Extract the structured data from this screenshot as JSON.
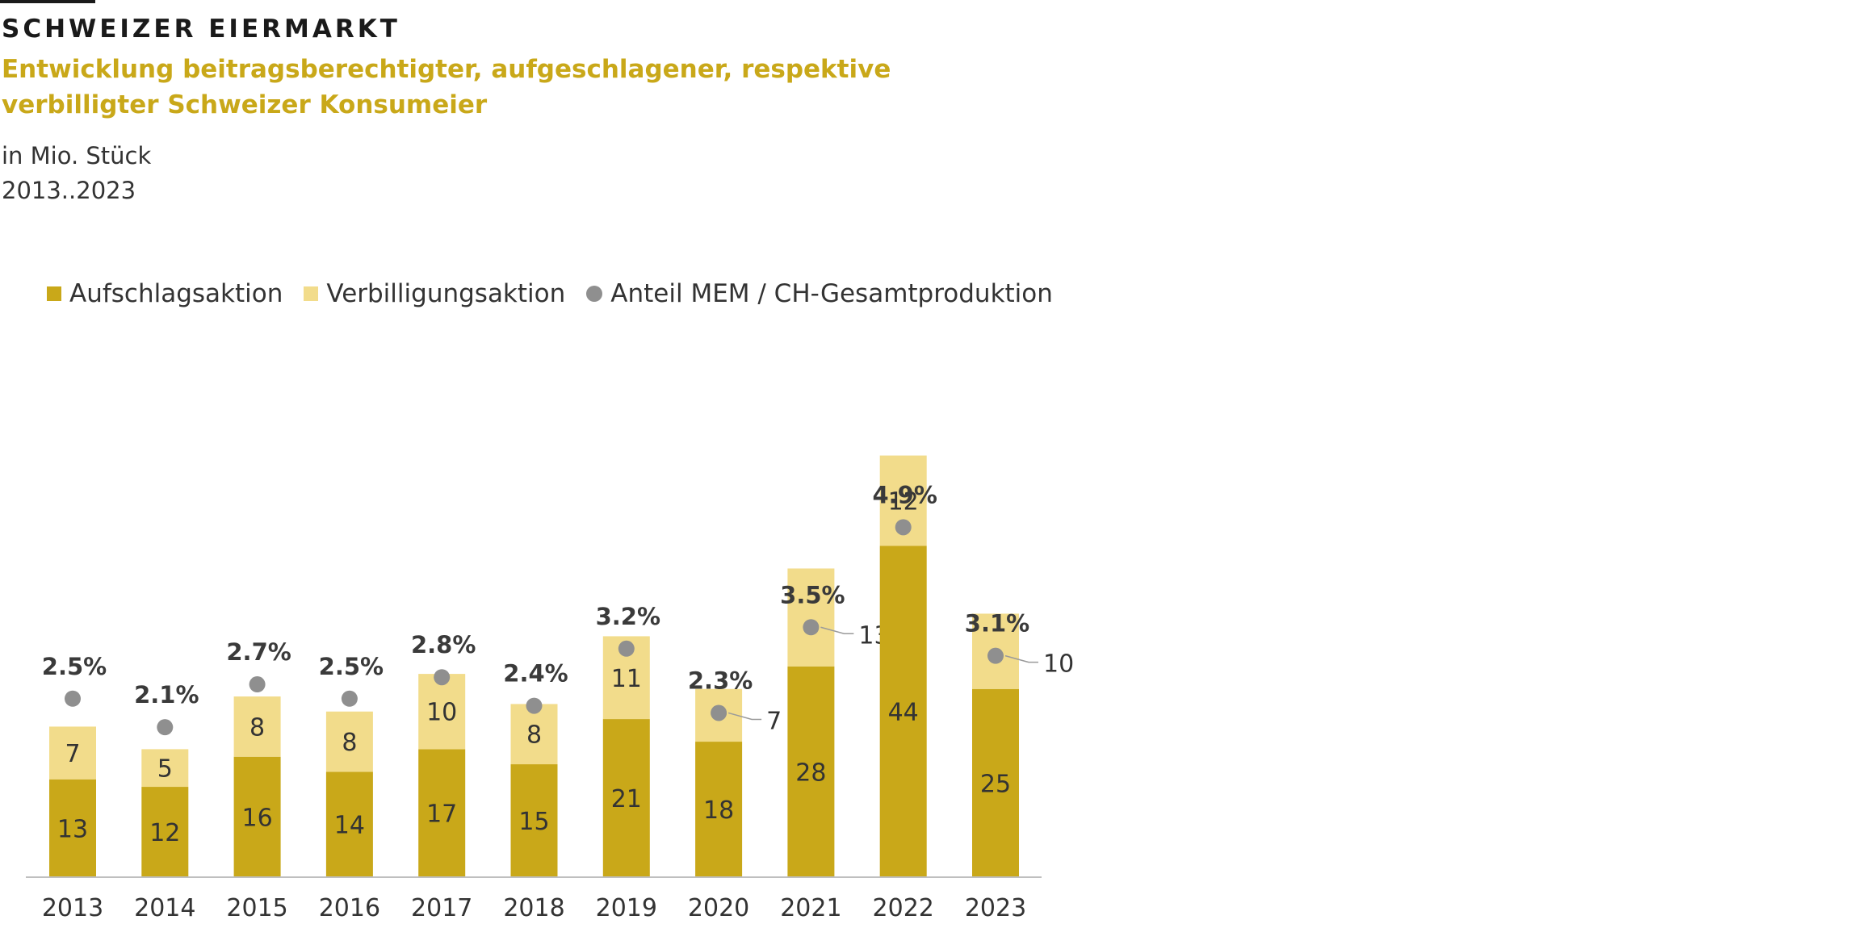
{
  "header": {
    "kicker": "SCHWEIZER EIERMARKT",
    "subtitle": "Entwicklung beitragsberechtigter, aufgeschlagener, respektive verbilligter Schweizer Konsumeier",
    "unit": "in Mio. Stück",
    "range": "2013..2023"
  },
  "colors": {
    "aufschlag": "#c9a819",
    "verbilligung": "#f2dc8b",
    "anteil": "#8f8f8f",
    "axis": "#bfbfbf",
    "subtitle": "#c9a819"
  },
  "chart_data": {
    "type": "bar",
    "stacked": true,
    "title": "Entwicklung beitragsberechtigter, aufgeschlagener, respektive verbilligter Schweizer Konsumeier",
    "ylabel": "in Mio. Stück",
    "ylim": [
      0,
      62
    ],
    "grid": false,
    "legend_position": "top-left",
    "categories": [
      "2013",
      "2014",
      "2015",
      "2016",
      "2017",
      "2018",
      "2019",
      "2020",
      "2021",
      "2022",
      "2023"
    ],
    "series": [
      {
        "name": "Aufschlagsaktion",
        "values": [
          13,
          12,
          16,
          14,
          17,
          15,
          21,
          18,
          28,
          44,
          25
        ]
      },
      {
        "name": "Verbilligungsaktion",
        "values": [
          7,
          5,
          8,
          8,
          10,
          8,
          11,
          7,
          13,
          12,
          10
        ]
      }
    ],
    "secondary_series": {
      "name": "Anteil MEM / CH-Gesamtproduktion",
      "type": "scatter",
      "values": [
        2.5,
        2.1,
        2.7,
        2.5,
        2.8,
        2.4,
        3.2,
        2.3,
        3.5,
        4.9,
        3.1
      ],
      "labels": [
        "2.5%",
        "2.1%",
        "2.7%",
        "2.5%",
        "2.8%",
        "2.4%",
        "3.2%",
        "2.3%",
        "3.5%",
        "4.9%",
        "3.1%"
      ],
      "ylim": [
        0,
        8
      ]
    }
  }
}
